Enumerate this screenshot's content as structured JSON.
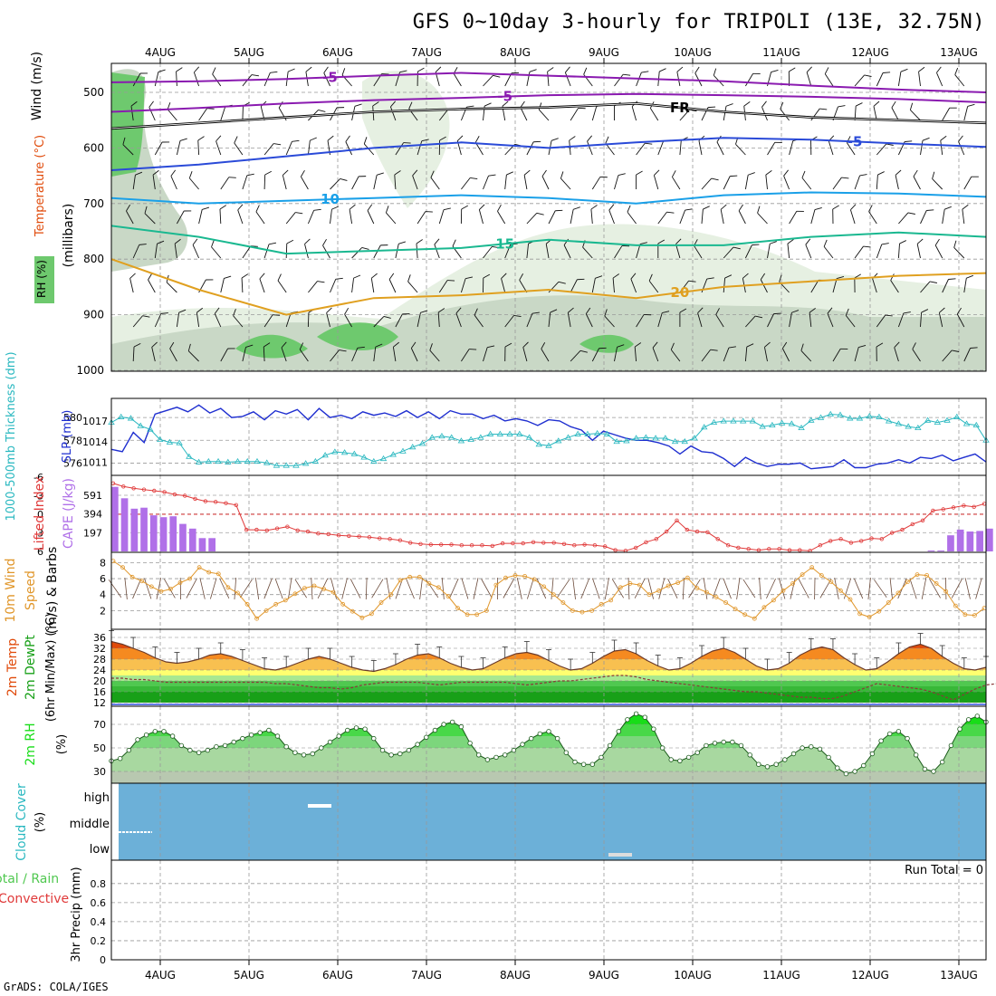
{
  "title": "GFS 0~10day 3-hourly for TRIPOLI (13E, 32.75N)",
  "credit": "GrADS: COLA/IGES",
  "dates": [
    "4AUG",
    "5AUG",
    "6AUG",
    "7AUG",
    "8AUG",
    "9AUG",
    "10AUG",
    "11AUG",
    "12AUG",
    "13AUG"
  ],
  "panel_labels": {
    "p1_wind": "Wind (m/s)",
    "p1_temp": "Temperature (°C)",
    "p1_mb": "(millibars)",
    "p1_rh": "RH (%)",
    "p2_thick": "1000-500mb Thickness (dm)",
    "p2_slp": "SLP (mb)",
    "p3_li": "Lifted Index",
    "p3_cape": "CAPE (J/kg)",
    "p4_wind": "10m Wind",
    "p4_speed": "Speed",
    "p4_units": "(m/s) & Barbs",
    "p5_temp": "2m Temp",
    "p5_dew": "2m DewPt",
    "p5_minmax": "(6hr Min/Max) (°C)",
    "p6_rh": "2m RH",
    "p6_units": "(%)",
    "p7_cloud": "Cloud Cover",
    "p7_units": "(%)",
    "p8_total": "Total / Rain",
    "p8_conv": "Convective",
    "p8_precip": "3hr Precip (mm)",
    "run_total": "Run Total = 0"
  },
  "icons": {
    "wind_barb": "wind-barb-icon"
  },
  "colors": {
    "thickness": "#1f2fd0",
    "slp": "#2ab8c0",
    "li": "#e03a3a",
    "cape": "#b070e8",
    "wind10": "#e0962a",
    "temp_dark": "#e04a0a",
    "temp_mid": "#f58a20",
    "temp_light": "#f8c050",
    "dew_dark": "#18a018",
    "dew_mid": "#50c850",
    "dew_light": "#a8e890",
    "rh_green": "#18dd18",
    "rh_mid": "#7cd67c",
    "rh_low": "#b8c8b0",
    "cloud": "#6cb0d8",
    "isotherm_purple": "#8a1ab0",
    "isotherm_blue": "#2a4ad8",
    "isotherm_cyan": "#1aa0e8",
    "isotherm_green": "#1ab890",
    "isotherm_orange": "#e0a020",
    "freezing": "#000000"
  },
  "chart_data": [
    {
      "type": "line",
      "panel": "upper-air cross-section",
      "ylabel": "millibars",
      "ylim": [
        1000,
        450
      ],
      "yticks": [
        500,
        600,
        700,
        800,
        900,
        1000
      ],
      "x_dates": [
        "4AUG",
        "5AUG",
        "6AUG",
        "7AUG",
        "8AUG",
        "9AUG",
        "10AUG",
        "11AUG",
        "12AUG",
        "13AUG"
      ],
      "isotherms": [
        {
          "label": "-5",
          "color": "#8a1ab0",
          "pressure": [
            482,
            480,
            476,
            470,
            465,
            470,
            475,
            480,
            488,
            495,
            500
          ]
        },
        {
          "label": "-5",
          "color": "#8a1ab0",
          "pressure": [
            535,
            528,
            520,
            514,
            510,
            505,
            503,
            505,
            508,
            512,
            518
          ]
        },
        {
          "label": "FR",
          "color": "#000000",
          "pressure": [
            565,
            555,
            545,
            535,
            530,
            527,
            520,
            535,
            545,
            550,
            555
          ]
        },
        {
          "label": "-5",
          "color": "#2a4ad8",
          "pressure": [
            640,
            630,
            615,
            600,
            590,
            600,
            590,
            582,
            585,
            592,
            598
          ]
        },
        {
          "label": "10",
          "color": "#1aa0e8",
          "pressure": [
            690,
            700,
            695,
            690,
            685,
            690,
            700,
            685,
            680,
            682,
            688
          ]
        },
        {
          "label": "15",
          "color": "#1ab890",
          "pressure": [
            740,
            760,
            790,
            785,
            780,
            765,
            775,
            775,
            760,
            752,
            760
          ]
        },
        {
          "label": "20",
          "color": "#e0a020",
          "pressure": [
            800,
            855,
            900,
            870,
            865,
            855,
            870,
            850,
            840,
            830,
            825
          ]
        }
      ],
      "rh_shading_levels": [
        "30",
        "50",
        "70",
        "90"
      ]
    },
    {
      "type": "line",
      "panel": "thickness-slp",
      "series": [
        {
          "name": "1000-500mb Thickness (dm)",
          "axis": "left",
          "yticks": [
            576,
            578,
            580
          ],
          "values": [
            577.2,
            577.0,
            578.7,
            577.8,
            580.3,
            580.6,
            580.9,
            580.5,
            581.1,
            580.4,
            580.8,
            580.0,
            580.1,
            580.5,
            579.8,
            580.6,
            580.3,
            580.7,
            579.8,
            580.8,
            580.0,
            580.2,
            579.9,
            580.5,
            580.2,
            580.4,
            580.1,
            580.6,
            580.0,
            580.5,
            579.9,
            580.6,
            580.3,
            580.3,
            579.9,
            580.2,
            579.7,
            579.9,
            579.7,
            579.3,
            579.8,
            579.7,
            579.2,
            578.9,
            578.0,
            578.8,
            578.5,
            578.2,
            578.0,
            578.0,
            577.8,
            577.5,
            576.8,
            577.5,
            577.0,
            576.9,
            576.4,
            575.7,
            576.5,
            576.0,
            575.7,
            575.9,
            575.9,
            576.0,
            575.5,
            575.6,
            575.7,
            576.3,
            575.6,
            575.6,
            575.9,
            576.0,
            576.3,
            576.0,
            576.5,
            576.4,
            576.7,
            576.2,
            576.5,
            576.8,
            576.1
          ]
        },
        {
          "name": "SLP (mb)",
          "axis": "right",
          "yticks": [
            1011,
            1014,
            1017
          ],
          "values": [
            1016.8,
            1017.6,
            1017.4,
            1016.3,
            1015.8,
            1014.3,
            1013.9,
            1013.8,
            1011.8,
            1011.0,
            1011.1,
            1011.1,
            1011.0,
            1011.1,
            1011.1,
            1011.1,
            1010.9,
            1010.5,
            1010.5,
            1010.5,
            1010.8,
            1011.1,
            1012.0,
            1012.5,
            1012.4,
            1012.2,
            1011.7,
            1011.1,
            1011.5,
            1012.1,
            1012.6,
            1013.2,
            1013.7,
            1014.6,
            1014.8,
            1014.6,
            1014.1,
            1014.3,
            1014.6,
            1015.1,
            1015.1,
            1015.1,
            1015.1,
            1014.6,
            1013.6,
            1013.4,
            1014.1,
            1014.6,
            1015.1,
            1015.1,
            1015.2,
            1015.1,
            1014.0,
            1014.1,
            1014.5,
            1014.6,
            1014.5,
            1014.5,
            1014.0,
            1014.0,
            1014.5,
            1016.1,
            1016.8,
            1017.0,
            1017.0,
            1017.0,
            1017.0,
            1016.2,
            1016.4,
            1016.7,
            1016.6,
            1016.0,
            1017.1,
            1017.5,
            1018.0,
            1017.9,
            1017.4,
            1017.4,
            1017.7,
            1017.6,
            1017.0,
            1016.6,
            1016.2,
            1016.0,
            1017.1,
            1016.8,
            1017.1,
            1017.6,
            1016.6,
            1016.4,
            1014.2
          ]
        }
      ]
    },
    {
      "type": "bar",
      "panel": "lifted-index-cape",
      "series": [
        {
          "name": "Lifted Index",
          "axis": "left",
          "yticks": [
            -6,
            -3,
            0,
            3,
            6
          ],
          "values": [
            -5.0,
            -4.5,
            -4.2,
            -4.0,
            -3.8,
            -3.6,
            -3.2,
            -3.0,
            -2.5,
            -2.1,
            -2.0,
            -1.8,
            -1.5,
            2.5,
            2.5,
            2.6,
            2.3,
            2.0,
            2.6,
            2.8,
            3.1,
            3.2,
            3.4,
            3.5,
            3.6,
            3.7,
            3.9,
            4.0,
            4.2,
            4.6,
            4.8,
            4.9,
            4.9,
            4.9,
            5.0,
            5.0,
            5.0,
            5.1,
            4.7,
            4.7,
            4.7,
            4.5,
            4.6,
            4.6,
            4.8,
            5.0,
            4.9,
            5.0,
            5.2,
            5.8,
            5.9,
            5.4,
            4.5,
            4.0,
            2.8,
            1.0,
            2.5,
            2.8,
            2.9,
            4.0,
            5.0,
            5.4,
            5.6,
            5.8,
            5.6,
            5.6,
            5.8,
            5.8,
            5.9,
            5.0,
            4.3,
            4.0,
            4.6,
            4.3,
            3.9,
            4.0,
            3.0,
            2.5,
            1.6,
            1.0,
            -0.6,
            -0.8,
            -1.1,
            -1.4,
            -1.2,
            -1.7
          ]
        },
        {
          "name": "CAPE (J/kg)",
          "axis": "right",
          "yticks": [
            197,
            394,
            591
          ],
          "values": [
            680,
            560,
            450,
            460,
            380,
            360,
            370,
            290,
            240,
            140,
            140,
            0,
            0,
            0,
            0,
            0,
            0,
            0,
            0,
            0,
            0,
            0,
            0,
            0,
            0,
            0,
            0,
            0,
            0,
            0,
            0,
            0,
            0,
            0,
            0,
            0,
            0,
            0,
            0,
            0,
            0,
            0,
            0,
            0,
            0,
            0,
            0,
            0,
            0,
            0,
            0,
            0,
            0,
            0,
            0,
            0,
            0,
            0,
            0,
            0,
            0,
            0,
            0,
            0,
            0,
            0,
            0,
            0,
            0,
            0,
            0,
            0,
            0,
            0,
            0,
            0,
            0,
            0,
            0,
            0,
            0,
            0,
            0,
            0,
            10,
            10,
            170,
            230,
            210,
            215,
            240
          ]
        }
      ]
    },
    {
      "type": "line",
      "panel": "10m-wind",
      "ylabel": "m/s",
      "yticks": [
        2,
        4,
        6,
        8
      ],
      "values": [
        8.2,
        7.4,
        6.2,
        5.7,
        5.0,
        4.4,
        4.7,
        5.5,
        6.0,
        7.4,
        6.8,
        6.6,
        4.9,
        4.2,
        2.8,
        1.0,
        2.0,
        2.8,
        3.3,
        4.1,
        4.8,
        5.1,
        4.7,
        4.3,
        2.8,
        1.9,
        1.1,
        1.6,
        3.0,
        4.0,
        5.8,
        6.2,
        6.2,
        5.4,
        4.9,
        3.8,
        2.3,
        1.5,
        1.5,
        2.0,
        5.2,
        6.1,
        6.4,
        6.3,
        5.9,
        5.0,
        4.0,
        3.0,
        2.0,
        1.8,
        2.0,
        2.8,
        3.3,
        4.9,
        5.4,
        5.2,
        4.0,
        4.5,
        5.1,
        5.5,
        6.1,
        4.8,
        4.3,
        3.7,
        3.0,
        2.2,
        1.5,
        1.0,
        2.4,
        3.3,
        4.5,
        5.4,
        6.5,
        7.4,
        6.4,
        5.6,
        4.5,
        3.4,
        1.6,
        1.2,
        1.9,
        3.0,
        4.2,
        5.6,
        6.5,
        6.4,
        5.4,
        4.4,
        2.6,
        1.5,
        1.4,
        2.3
      ]
    },
    {
      "type": "area",
      "panel": "2m-temp-dewpoint",
      "ylabel": "°C",
      "yticks": [
        12,
        16,
        20,
        24,
        28,
        32,
        36
      ],
      "series": [
        {
          "name": "2m Temp",
          "values": [
            34.5,
            33.5,
            32,
            30.5,
            28.5,
            27,
            26.5,
            27,
            28,
            29.5,
            30,
            29,
            27.5,
            26,
            24.5,
            24,
            25,
            26.5,
            28,
            29,
            28,
            26.5,
            25,
            24,
            23.5,
            24.5,
            26,
            28,
            29.5,
            30,
            28.5,
            26.5,
            25,
            24,
            24.5,
            26.5,
            28.5,
            30,
            30.5,
            29.5,
            27.5,
            25.5,
            24,
            24.5,
            26.5,
            29,
            31,
            31.5,
            30,
            27.5,
            25.5,
            24,
            24.5,
            26.5,
            29,
            31,
            32,
            30.5,
            28,
            25.5,
            24,
            24.5,
            26.5,
            29.5,
            31.5,
            32.5,
            31.5,
            28.5,
            26,
            24,
            24.5,
            27,
            30,
            32.5,
            33.5,
            32,
            29,
            26.5,
            24.5,
            24,
            25
          ]
        },
        {
          "name": "2m DewPt",
          "values": [
            21,
            21,
            20.5,
            20.5,
            20,
            19.5,
            19.5,
            19.5,
            19.5,
            19.5,
            19.5,
            19.5,
            19.5,
            19.5,
            19.5,
            19,
            19,
            18.5,
            18,
            17.5,
            17.5,
            17,
            17.5,
            18.5,
            19,
            19.5,
            19.5,
            19.5,
            19.5,
            19,
            18.5,
            19,
            19.5,
            19.5,
            19.5,
            19.5,
            19.5,
            19,
            18.5,
            19,
            19.5,
            20,
            20,
            20.5,
            21,
            21.5,
            22,
            22,
            21.5,
            20.5,
            20,
            19.5,
            19,
            18.5,
            18,
            17.5,
            17,
            16.5,
            16,
            16,
            15.5,
            15,
            14.5,
            14,
            14,
            13.5,
            13.5,
            14.5,
            16,
            17.5,
            19,
            18.5,
            18,
            17.5,
            17,
            16,
            14.5,
            13,
            15,
            17,
            18.5,
            19,
            19.5,
            20,
            20,
            20
          ]
        }
      ]
    },
    {
      "type": "area",
      "panel": "2m-rh",
      "ylabel": "%",
      "yticks": [
        30,
        50,
        70
      ],
      "values": [
        39,
        41,
        48,
        57,
        61,
        64,
        64,
        60,
        52,
        48,
        46,
        48,
        51,
        52,
        55,
        58,
        61,
        63,
        65,
        60,
        51,
        46,
        44,
        45,
        50,
        55,
        60,
        65,
        67,
        66,
        58,
        48,
        44,
        45,
        48,
        53,
        59,
        65,
        70,
        72,
        68,
        54,
        44,
        40,
        42,
        44,
        48,
        53,
        58,
        62,
        64,
        58,
        46,
        38,
        36,
        36,
        42,
        52,
        64,
        74,
        79,
        76,
        66,
        50,
        40,
        39,
        42,
        46,
        52,
        54,
        55,
        55,
        52,
        44,
        36,
        34,
        36,
        40,
        45,
        50,
        51,
        49,
        42,
        33,
        28,
        30,
        35,
        45,
        56,
        62,
        64,
        58,
        44,
        32,
        30,
        38,
        52,
        66,
        74,
        77,
        72
      ]
    },
    {
      "type": "heatmap",
      "panel": "cloud-cover",
      "categories": [
        "low",
        "middle",
        "high"
      ],
      "values": [
        0,
        0,
        0
      ]
    },
    {
      "type": "bar",
      "panel": "3hr-precip",
      "ylabel": "mm",
      "yticks": [
        0,
        0.2,
        0.4,
        0.6,
        0.8
      ],
      "ylim": [
        0,
        0.95
      ],
      "values": [
        0,
        0,
        0,
        0,
        0,
        0,
        0,
        0,
        0,
        0,
        0,
        0,
        0,
        0,
        0,
        0,
        0,
        0,
        0,
        0,
        0,
        0,
        0,
        0,
        0,
        0,
        0,
        0,
        0,
        0,
        0,
        0,
        0,
        0,
        0,
        0,
        0,
        0,
        0,
        0,
        0,
        0,
        0,
        0,
        0,
        0,
        0,
        0,
        0,
        0,
        0,
        0,
        0,
        0,
        0,
        0,
        0,
        0,
        0,
        0,
        0,
        0,
        0,
        0,
        0,
        0,
        0,
        0,
        0,
        0,
        0,
        0,
        0,
        0,
        0,
        0,
        0,
        0,
        0,
        0,
        0
      ]
    }
  ]
}
